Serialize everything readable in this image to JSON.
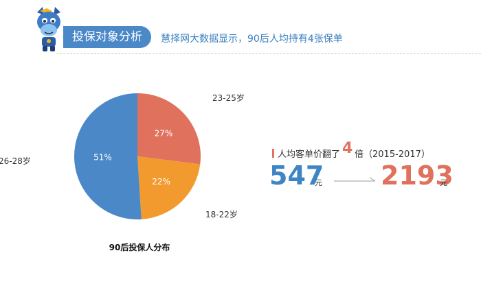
{
  "header": {
    "section_title": "投保对象分析",
    "subtitle": "慧择网大数据显示，90后人均持有4张保单"
  },
  "chart_data": {
    "type": "pie",
    "title": "90后投保人分布",
    "slices": [
      {
        "label": "23-25岁",
        "value": 27,
        "value_label": "27%",
        "color": "#e0715c"
      },
      {
        "label": "18-22岁",
        "value": 22,
        "value_label": "22%",
        "color": "#f29a2e"
      },
      {
        "label": "26-28岁",
        "value": 51,
        "value_label": "51%",
        "color": "#4b88c8"
      }
    ]
  },
  "stats": {
    "label": "人均客单价翻了",
    "multiplier": "4",
    "range": "倍（2015-2017）",
    "from_value": "547",
    "from_unit": "元",
    "to_value": "2193",
    "to_unit": "元"
  },
  "colors": {
    "accent_blue": "#4b88c8",
    "accent_red": "#e0715c",
    "accent_orange": "#f29a2e"
  }
}
